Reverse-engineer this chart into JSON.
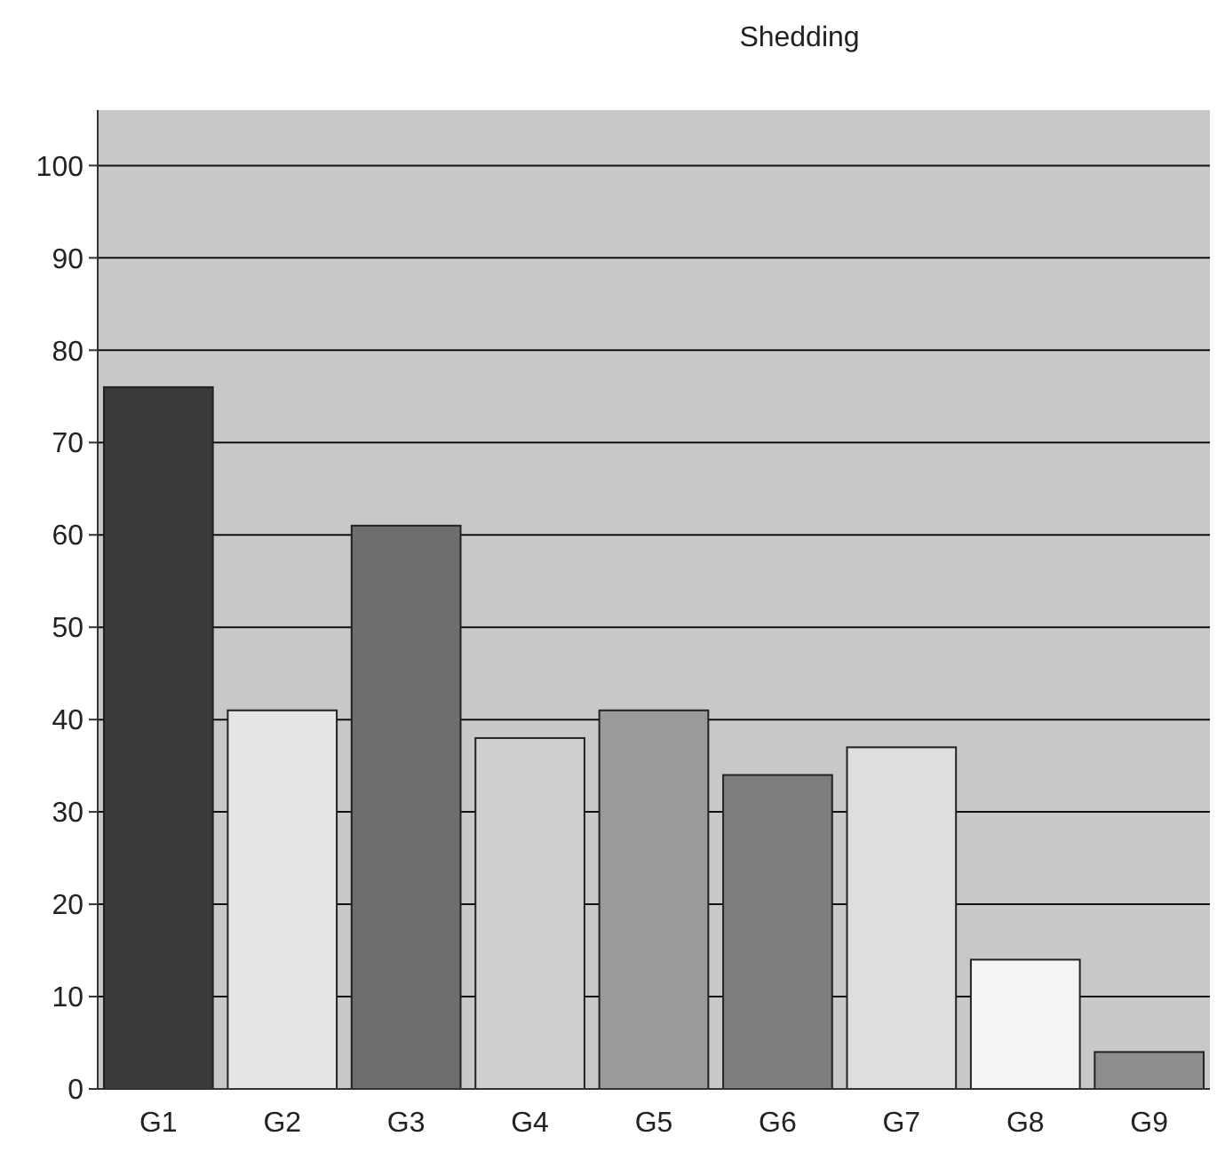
{
  "chart_data": {
    "type": "bar",
    "title": "Shedding",
    "categories": [
      "G1",
      "G2",
      "G3",
      "G4",
      "G5",
      "G6",
      "G7",
      "G8",
      "G9"
    ],
    "values": [
      76,
      41,
      61,
      38,
      41,
      34,
      37,
      14,
      4
    ],
    "colors": [
      "#3a3a3a",
      "#e6e6e6",
      "#6e6e6e",
      "#cfcfcf",
      "#9a9a9a",
      "#7e7e7e",
      "#dedede",
      "#f4f4f4",
      "#8e8e8e"
    ],
    "ylim": [
      0,
      106
    ],
    "yticks": [
      0,
      10,
      20,
      30,
      40,
      50,
      60,
      70,
      80,
      90,
      100
    ],
    "grid": "y"
  }
}
